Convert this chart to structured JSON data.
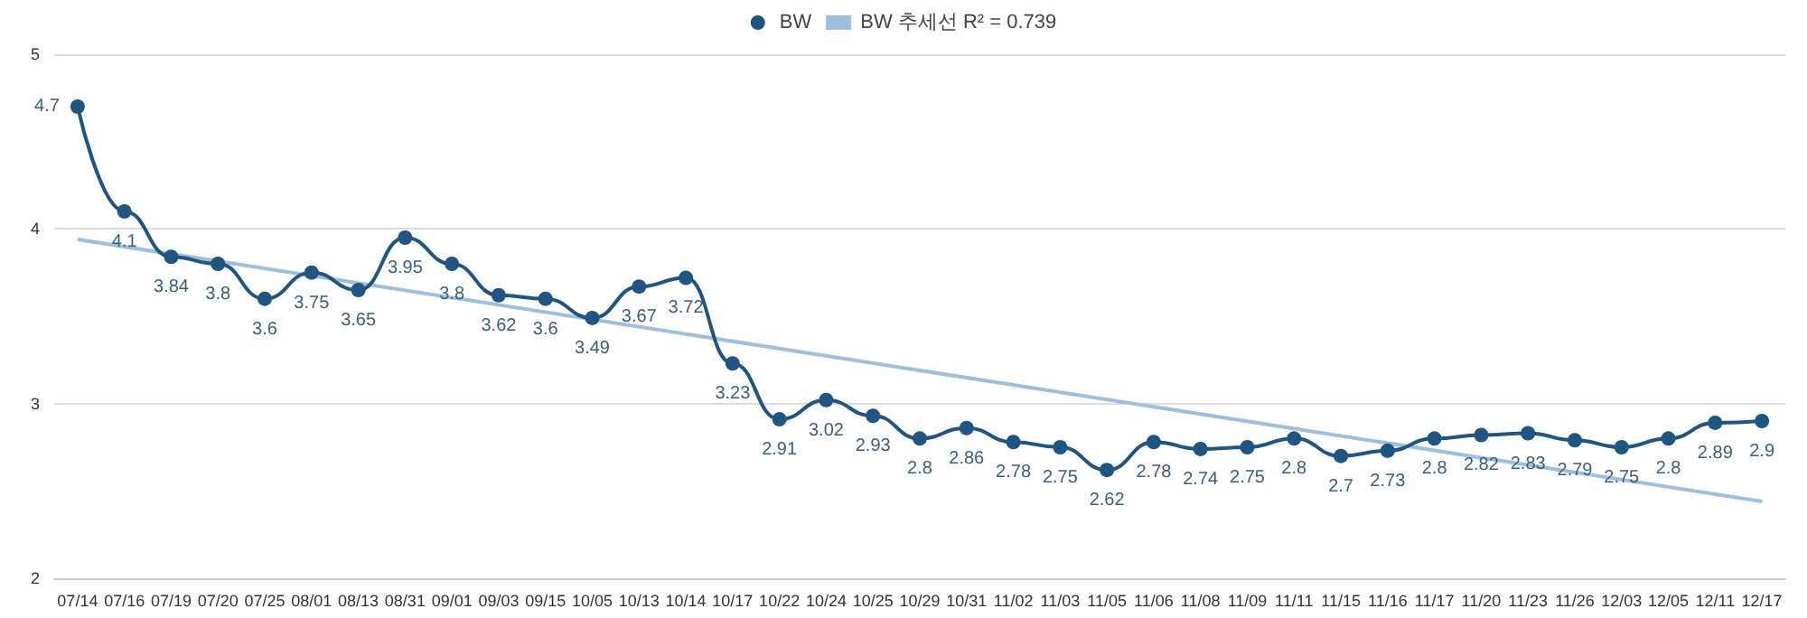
{
  "chart_data": {
    "type": "line",
    "categories": [
      "07/14",
      "07/16",
      "07/19",
      "07/20",
      "07/25",
      "08/01",
      "08/13",
      "08/31",
      "09/01",
      "09/03",
      "09/15",
      "10/05",
      "10/13",
      "10/14",
      "10/17",
      "10/22",
      "10/24",
      "10/25",
      "10/29",
      "10/31",
      "11/02",
      "11/03",
      "11/05",
      "11/06",
      "11/08",
      "11/09",
      "11/11",
      "11/15",
      "11/16",
      "11/17",
      "11/20",
      "11/23",
      "11/26",
      "12/03",
      "12/05",
      "12/11",
      "12/17"
    ],
    "series": [
      {
        "name": "BW",
        "color": "#1f5582",
        "marker": "circle",
        "data_labels": true,
        "values": [
          4.7,
          4.1,
          3.84,
          3.8,
          3.6,
          3.75,
          3.65,
          3.95,
          3.8,
          3.62,
          3.6,
          3.49,
          3.67,
          3.72,
          3.23,
          2.91,
          3.02,
          2.93,
          2.8,
          2.86,
          2.78,
          2.75,
          2.62,
          2.78,
          2.74,
          2.75,
          2.8,
          2.7,
          2.73,
          2.8,
          2.82,
          2.83,
          2.79,
          2.75,
          2.8,
          2.89,
          2.9
        ]
      },
      {
        "name": "BW 추세선 R² = 0.739",
        "color": "#9dbfdf",
        "marker": "none",
        "x": [
          "07/14",
          "12/17"
        ],
        "values": [
          3.94,
          2.44
        ]
      }
    ],
    "ylim": [
      2,
      5
    ],
    "yticks": [
      2,
      3,
      4,
      5
    ],
    "grid": "y",
    "legend": "top"
  }
}
